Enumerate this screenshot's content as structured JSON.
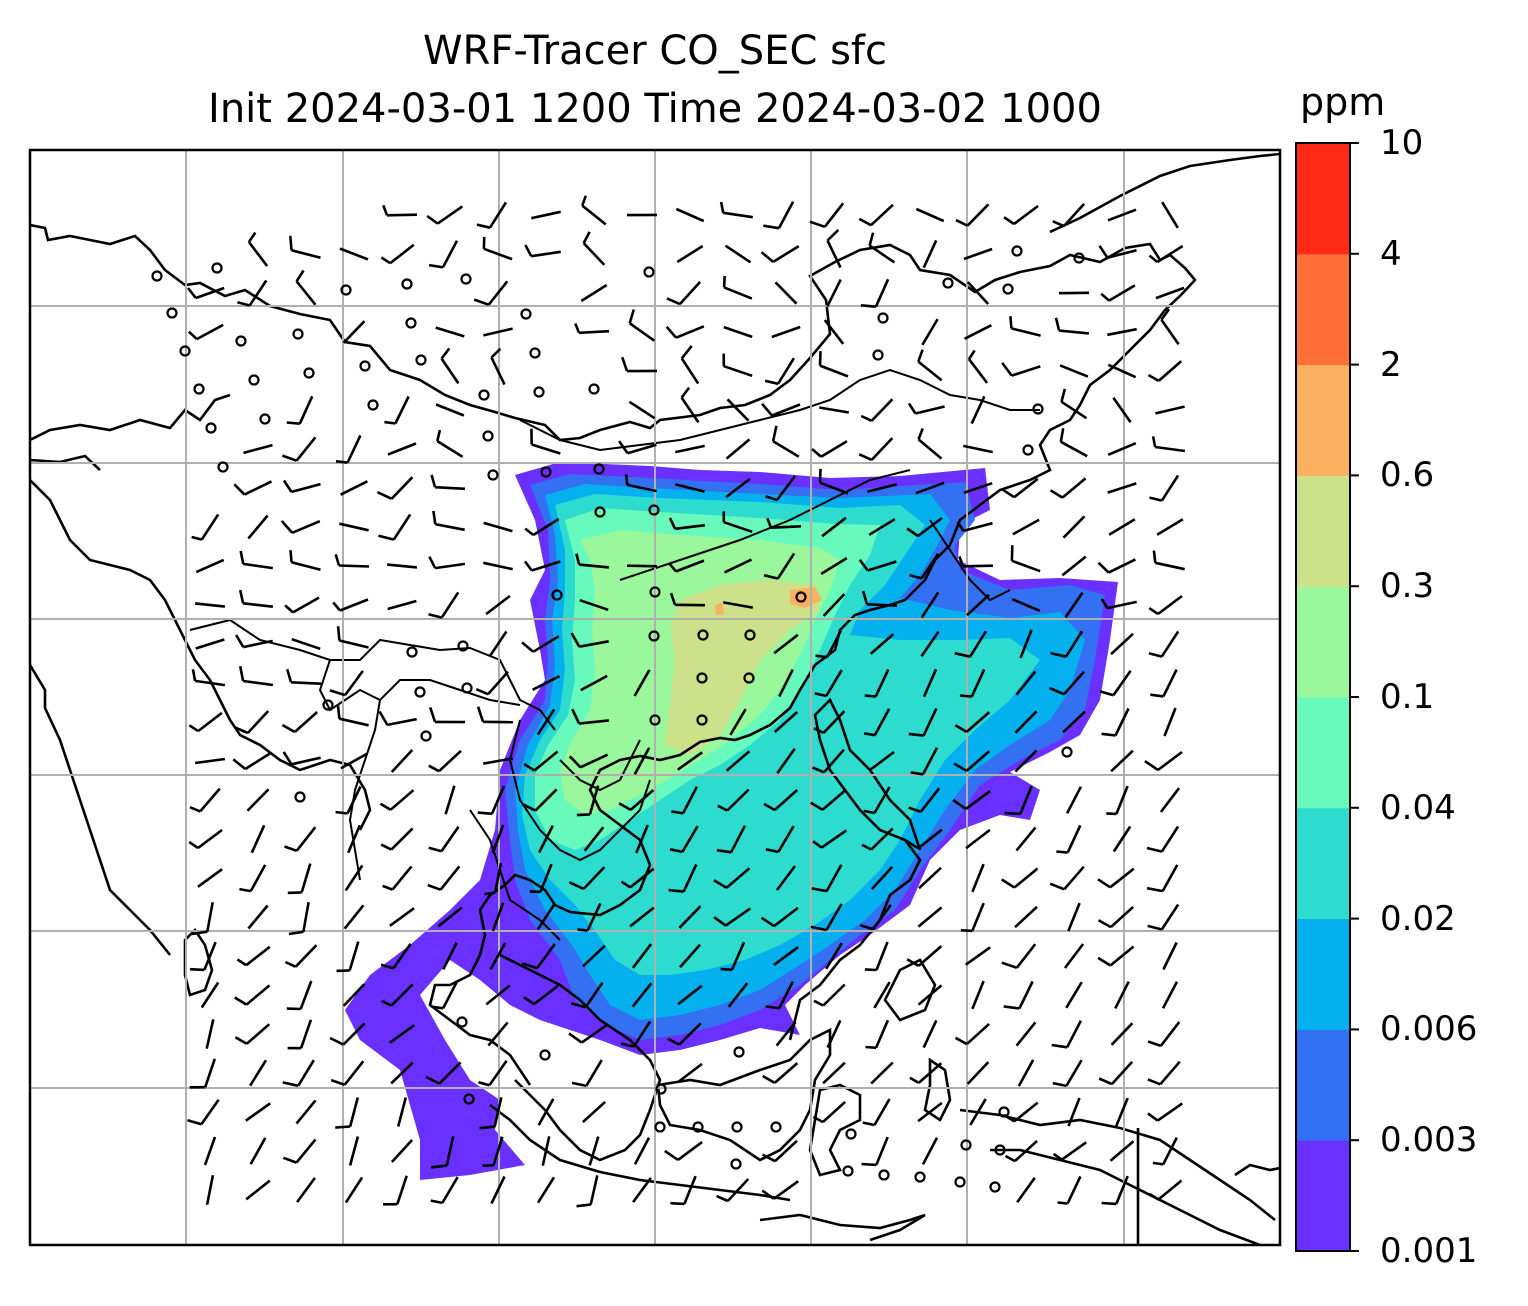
{
  "title": {
    "line1": "WRF-Tracer CO_SEC sfc",
    "line2": "Init 2024-03-01 1200 Time 2024-03-02 1000"
  },
  "colorbar": {
    "unit": "ppm",
    "levels": [
      "0.001",
      "0.003",
      "0.006",
      "0.02",
      "0.04",
      "0.1",
      "0.3",
      "0.6",
      "2",
      "4",
      "10"
    ],
    "colors": [
      "#6a30ff",
      "#3370f2",
      "#05b0ee",
      "#2ddccf",
      "#68f9bd",
      "#9bf79b",
      "#cde08a",
      "#fbb15f",
      "#ff7038",
      "#ff2a16"
    ]
  },
  "map": {
    "type": "filled-contour with wind barbs",
    "projection": "regional map (Asia–Maritime Continent)",
    "grid": true,
    "field": "CO_SEC surface tracer concentration",
    "wind_barbs": true,
    "calm_symbol": "circle"
  }
}
